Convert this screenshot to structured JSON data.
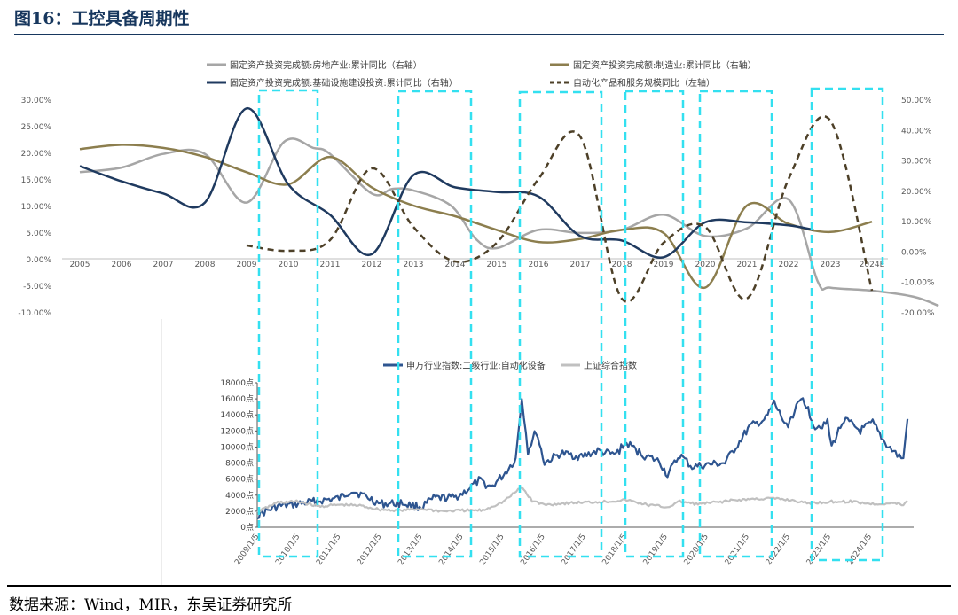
{
  "figure_title": "图16：工控具备周期性",
  "source_note": "数据来源：Wind，MIR，东吴证券研究所",
  "chart_data": [
    {
      "type": "line",
      "x": [
        "2005",
        "2006",
        "2007",
        "2008",
        "2009",
        "2010",
        "2011",
        "2012",
        "2013",
        "2014",
        "2015",
        "2016",
        "2017",
        "2018",
        "2019",
        "2020",
        "2021",
        "2022",
        "2023",
        "2024E"
      ],
      "left_axis": {
        "ticks": [
          "30.00%",
          "25.00%",
          "20.00%",
          "15.00%",
          "10.00%",
          "5.00%",
          "0.00%",
          "-5.00%",
          "-10.00%"
        ],
        "ylim": [
          -10,
          30
        ]
      },
      "right_axis": {
        "ticks": [
          "50.00%",
          "40.00%",
          "30.00%",
          "20.00%",
          "10.00%",
          "0.00%",
          "-10.00%",
          "-20.00%"
        ],
        "ylim": [
          -20,
          50
        ]
      },
      "legend_position": "top",
      "series": [
        {
          "name": "固定资产投资完成额:房地产业:累计同比（右轴）",
          "axis": "right",
          "color": "#a6a6a6",
          "style": "solid",
          "values": [
            null,
            null,
            null,
            null,
            null,
            null,
            null,
            null,
            null,
            null,
            null,
            null,
            null,
            null,
            null,
            null,
            null,
            null,
            null,
            null
          ],
          "points": [
            [
              0,
              26
            ],
            [
              1,
              27.5
            ],
            [
              2,
              32
            ],
            [
              3,
              32
            ],
            [
              4,
              16
            ],
            [
              4.9,
              36
            ],
            [
              5.6,
              34
            ],
            [
              6,
              32
            ],
            [
              7,
              19
            ],
            [
              7.5,
              20.5
            ],
            [
              8,
              20
            ],
            [
              8.9,
              15
            ],
            [
              9.5,
              4
            ],
            [
              10,
              1
            ],
            [
              11,
              7
            ],
            [
              12,
              6
            ],
            [
              13,
              7
            ],
            [
              14,
              12
            ],
            [
              15,
              5
            ],
            [
              16,
              7.5
            ],
            [
              17,
              17
            ],
            [
              17.7,
              -10
            ],
            [
              18,
              -12
            ],
            [
              19,
              -13
            ],
            [
              20,
              -15
            ],
            [
              20.6,
              -18
            ]
          ]
        },
        {
          "name": "固定资产投资完成额:制造业:累计同比（右轴）",
          "axis": "right",
          "color": "#8c7e4e",
          "style": "solid",
          "points": [
            [
              0,
              33.6
            ],
            [
              1,
              35
            ],
            [
              2,
              34
            ],
            [
              3,
              31
            ],
            [
              4,
              26
            ],
            [
              5,
              22
            ],
            [
              6,
              31
            ],
            [
              7,
              21
            ],
            [
              8,
              15
            ],
            [
              9,
              11.5
            ],
            [
              10,
              7
            ],
            [
              11,
              3
            ],
            [
              12,
              4
            ],
            [
              13,
              7
            ],
            [
              14,
              6
            ],
            [
              15,
              -12
            ],
            [
              16,
              15
            ],
            [
              17,
              9
            ],
            [
              18,
              6.3
            ],
            [
              19,
              9.7
            ]
          ]
        },
        {
          "name": "固定资产投资完成额:基础设施建设投资:累计同比（右轴）",
          "axis": "right",
          "color": "#1f3a5f",
          "style": "solid",
          "points": [
            [
              0,
              28
            ],
            [
              1,
              23
            ],
            [
              2,
              19
            ],
            [
              3,
              16
            ],
            [
              4,
              47
            ],
            [
              5,
              22
            ],
            [
              6,
              12
            ],
            [
              7,
              -1
            ],
            [
              8,
              25
            ],
            [
              9,
              21
            ],
            [
              10,
              19.5
            ],
            [
              11,
              18
            ],
            [
              12,
              5
            ],
            [
              13,
              3.5
            ],
            [
              14,
              -2
            ],
            [
              15,
              9.5
            ],
            [
              16,
              9.5
            ],
            [
              17,
              8.5
            ],
            [
              17.6,
              7
            ]
          ]
        },
        {
          "name": "自动化产品和服务规模同比（左轴）",
          "axis": "left",
          "color": "#4d4028",
          "style": "dashed",
          "points": [
            [
              4,
              2.5
            ],
            [
              5,
              1.5
            ],
            [
              6,
              3.5
            ],
            [
              7,
              17
            ],
            [
              8,
              6
            ],
            [
              9,
              -0.5
            ],
            [
              10,
              3
            ],
            [
              11,
              15
            ],
            [
              12,
              23
            ],
            [
              13,
              -7.5
            ],
            [
              14,
              3
            ],
            [
              15,
              6
            ],
            [
              16,
              -7.5
            ],
            [
              17,
              15
            ],
            [
              18,
              26
            ],
            [
              19,
              -6
            ]
          ]
        }
      ]
    },
    {
      "type": "line",
      "x_ticks": [
        "2009/1/5",
        "2010/1/5",
        "2011/1/5",
        "2012/1/5",
        "2013/1/5",
        "2014/1/5",
        "2015/1/5",
        "2016/1/5",
        "2017/1/5",
        "2018/1/5",
        "2019/1/5",
        "2020/1/5",
        "2021/1/5",
        "2022/1/5",
        "2023/1/5",
        "2024/1/5"
      ],
      "y_ticks": [
        "18000点",
        "16000点",
        "14000点",
        "12000点",
        "10000点",
        "8000点",
        "6000点",
        "4000点",
        "2000点",
        "0点"
      ],
      "ylim": [
        0,
        18000
      ],
      "legend_position": "top",
      "series": [
        {
          "name": "申万行业指数:二级行业:自动化设备",
          "color": "#2e5590",
          "points": [
            [
              2009.0,
              1500
            ],
            [
              2009.5,
              2600
            ],
            [
              2010.0,
              2900
            ],
            [
              2010.5,
              3300
            ],
            [
              2011.0,
              3600
            ],
            [
              2011.3,
              4600
            ],
            [
              2011.7,
              3700
            ],
            [
              2012.0,
              2900
            ],
            [
              2012.5,
              3000
            ],
            [
              2013.0,
              2500
            ],
            [
              2013.3,
              3600
            ],
            [
              2013.8,
              3700
            ],
            [
              2014.0,
              4200
            ],
            [
              2014.4,
              5800
            ],
            [
              2014.7,
              5000
            ],
            [
              2015.0,
              6500
            ],
            [
              2015.3,
              8500
            ],
            [
              2015.45,
              16200
            ],
            [
              2015.6,
              9500
            ],
            [
              2015.8,
              12000
            ],
            [
              2016.0,
              8000
            ],
            [
              2016.4,
              9200
            ],
            [
              2016.9,
              8800
            ],
            [
              2017.3,
              9500
            ],
            [
              2017.7,
              9000
            ],
            [
              2018.0,
              10500
            ],
            [
              2018.4,
              9000
            ],
            [
              2018.8,
              8200
            ],
            [
              2019.0,
              6500
            ],
            [
              2019.3,
              9000
            ],
            [
              2019.6,
              7500
            ],
            [
              2020.0,
              7800
            ],
            [
              2020.4,
              8000
            ],
            [
              2020.8,
              11000
            ],
            [
              2021.0,
              12500
            ],
            [
              2021.4,
              13500
            ],
            [
              2021.6,
              15500
            ],
            [
              2021.9,
              12500
            ],
            [
              2022.1,
              14500
            ],
            [
              2022.3,
              16200
            ],
            [
              2022.6,
              12500
            ],
            [
              2022.9,
              13000
            ],
            [
              2023.0,
              10000
            ],
            [
              2023.3,
              13500
            ],
            [
              2023.7,
              12000
            ],
            [
              2024.0,
              13000
            ],
            [
              2024.3,
              10500
            ],
            [
              2024.6,
              9000
            ],
            [
              2024.75,
              8500
            ],
            [
              2024.85,
              13500
            ]
          ]
        },
        {
          "name": "上证综合指数",
          "color": "#c0c0c0",
          "points": [
            [
              2009.0,
              1900
            ],
            [
              2009.5,
              3100
            ],
            [
              2010.0,
              3200
            ],
            [
              2010.5,
              2600
            ],
            [
              2011.0,
              2800
            ],
            [
              2011.5,
              2700
            ],
            [
              2012.0,
              2200
            ],
            [
              2012.5,
              2100
            ],
            [
              2013.0,
              2300
            ],
            [
              2013.5,
              2000
            ],
            [
              2014.0,
              2100
            ],
            [
              2014.5,
              2100
            ],
            [
              2015.0,
              3200
            ],
            [
              2015.45,
              5000
            ],
            [
              2015.7,
              3300
            ],
            [
              2016.0,
              2800
            ],
            [
              2016.5,
              3000
            ],
            [
              2017.0,
              3100
            ],
            [
              2017.5,
              3200
            ],
            [
              2018.0,
              3400
            ],
            [
              2018.5,
              2800
            ],
            [
              2019.0,
              2500
            ],
            [
              2019.3,
              3200
            ],
            [
              2019.7,
              2900
            ],
            [
              2020.0,
              3000
            ],
            [
              2020.5,
              3300
            ],
            [
              2021.0,
              3500
            ],
            [
              2021.5,
              3600
            ],
            [
              2022.0,
              3400
            ],
            [
              2022.4,
              3000
            ],
            [
              2022.8,
              3100
            ],
            [
              2023.0,
              3200
            ],
            [
              2023.5,
              3200
            ],
            [
              2024.0,
              2900
            ],
            [
              2024.5,
              3000
            ],
            [
              2024.75,
              2800
            ],
            [
              2024.85,
              3300
            ]
          ]
        }
      ]
    }
  ]
}
